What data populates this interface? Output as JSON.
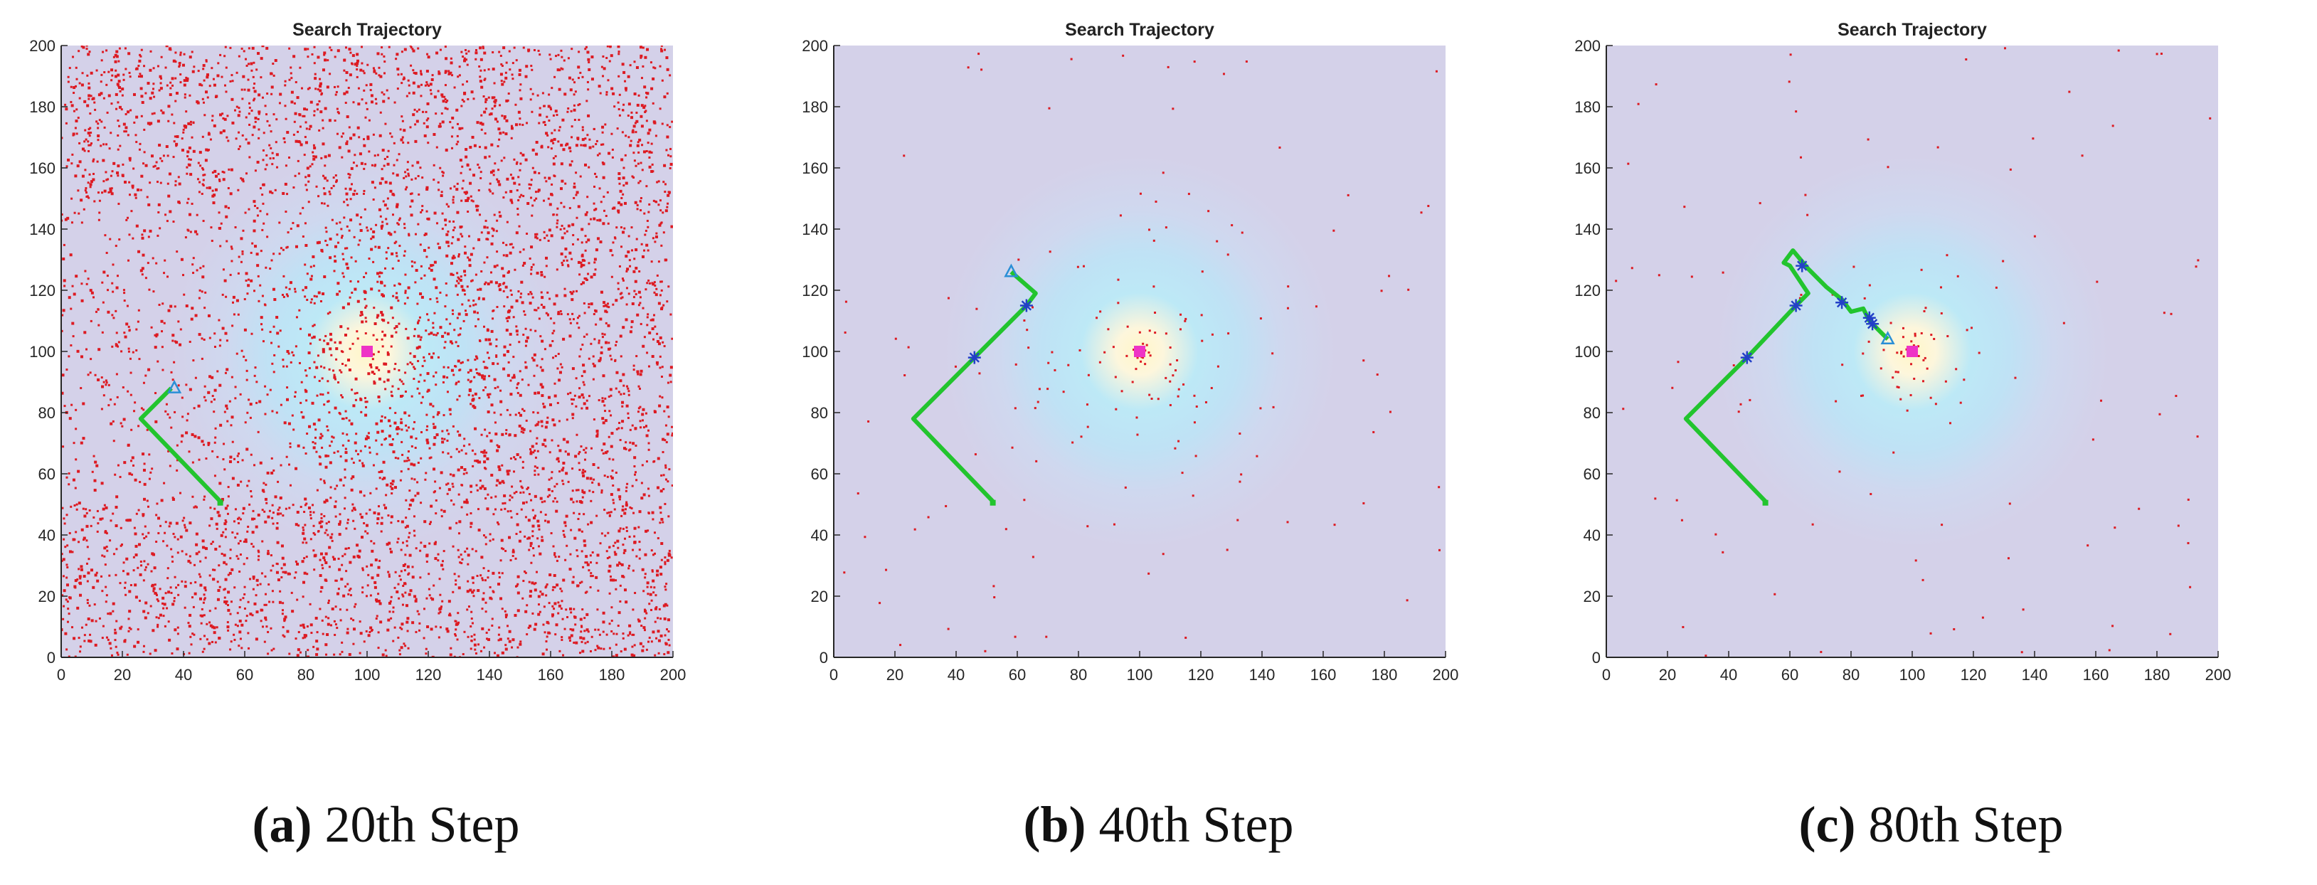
{
  "colors": {
    "field_background": "#d4d1e9",
    "particle": "#dd1a22",
    "trajectory": "#22c42e",
    "waypoint": "#2340c8",
    "source_marker": "#ee33c6",
    "agent_marker": "#2a8fd6",
    "axis": "#262626"
  },
  "chart_data": [
    {
      "type": "scatter",
      "title": "Search Trajectory",
      "xlim": [
        0,
        200
      ],
      "ylim": [
        0,
        200
      ],
      "xticks": [
        "0",
        "20",
        "40",
        "60",
        "80",
        "100",
        "120",
        "140",
        "160",
        "180",
        "200"
      ],
      "yticks": [
        "0",
        "20",
        "40",
        "60",
        "80",
        "100",
        "120",
        "140",
        "160",
        "180",
        "200"
      ],
      "grid": false,
      "background": "concentration field centred on the source",
      "source": {
        "x": 100,
        "y": 100
      },
      "particles": {
        "count_approx": 6000,
        "distribution": "dense, uniform across the area"
      },
      "trajectory": [
        [
          52,
          51
        ],
        [
          26,
          78
        ],
        [
          36,
          88
        ]
      ],
      "waypoints": [],
      "agent_position": {
        "x": 37,
        "y": 88
      },
      "caption": {
        "label": "(a)",
        "text": "20th Step"
      }
    },
    {
      "type": "scatter",
      "title": "Search Trajectory",
      "xlim": [
        0,
        200
      ],
      "ylim": [
        0,
        200
      ],
      "xticks": [
        "0",
        "20",
        "40",
        "60",
        "80",
        "100",
        "120",
        "140",
        "160",
        "180",
        "200"
      ],
      "yticks": [
        "0",
        "20",
        "40",
        "60",
        "80",
        "100",
        "120",
        "140",
        "160",
        "180",
        "200"
      ],
      "grid": false,
      "background": "concentration field centred on the source",
      "source": {
        "x": 100,
        "y": 100
      },
      "particles": {
        "count_approx": 200,
        "distribution": "sparse, few clustered near the source"
      },
      "trajectory": [
        [
          52,
          51
        ],
        [
          26,
          78
        ],
        [
          46,
          98
        ],
        [
          63,
          115
        ],
        [
          66,
          119
        ],
        [
          58,
          126
        ]
      ],
      "waypoints": [
        {
          "x": 46,
          "y": 98
        },
        {
          "x": 63,
          "y": 115
        }
      ],
      "agent_position": {
        "x": 58,
        "y": 126
      },
      "caption": {
        "label": "(b)",
        "text": "40th Step"
      }
    },
    {
      "type": "scatter",
      "title": "Search Trajectory",
      "xlim": [
        0,
        200
      ],
      "ylim": [
        0,
        200
      ],
      "xticks": [
        "0",
        "20",
        "40",
        "60",
        "80",
        "100",
        "120",
        "140",
        "160",
        "180",
        "200"
      ],
      "yticks": [
        "0",
        "20",
        "40",
        "60",
        "80",
        "100",
        "120",
        "140",
        "160",
        "180",
        "200"
      ],
      "grid": false,
      "background": "concentration field centred on the source",
      "source": {
        "x": 100,
        "y": 100
      },
      "particles": {
        "count_approx": 160,
        "distribution": "sparse, concentrated near the source"
      },
      "trajectory": [
        [
          52,
          51
        ],
        [
          26,
          78
        ],
        [
          46,
          98
        ],
        [
          62,
          115
        ],
        [
          66,
          119
        ],
        [
          60,
          128
        ],
        [
          58,
          129
        ],
        [
          61,
          133
        ],
        [
          66,
          127
        ],
        [
          72,
          121
        ],
        [
          77,
          117
        ],
        [
          80,
          113
        ],
        [
          84,
          114
        ],
        [
          86,
          110
        ],
        [
          89,
          107
        ],
        [
          92,
          104
        ]
      ],
      "waypoints": [
        {
          "x": 46,
          "y": 98
        },
        {
          "x": 62,
          "y": 115
        },
        {
          "x": 64,
          "y": 128
        },
        {
          "x": 77,
          "y": 116
        },
        {
          "x": 86,
          "y": 111
        },
        {
          "x": 87,
          "y": 109
        }
      ],
      "agent_position": {
        "x": 92,
        "y": 104
      },
      "caption": {
        "label": "(c)",
        "text": "80th Step"
      }
    }
  ]
}
